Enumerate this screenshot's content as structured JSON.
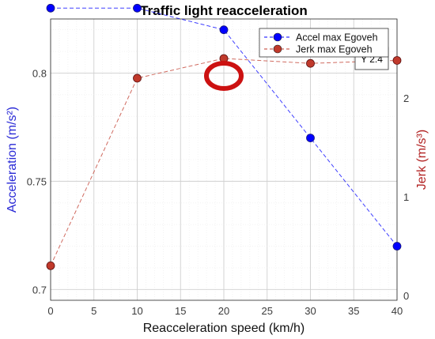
{
  "chart_data": {
    "type": "line",
    "title": "Traffic light reacceleration",
    "xlabel": "Reacceleration speed (km/h)",
    "ylabel_left": "Acceleration (m/s²)",
    "ylabel_right": "Jerk (m/s³)",
    "x": [
      0,
      10,
      20,
      30,
      40
    ],
    "xlim": [
      0,
      40
    ],
    "xticks": [
      "0",
      "5",
      "10",
      "15",
      "20",
      "25",
      "30",
      "35",
      "40"
    ],
    "ylim_left": [
      0.695,
      0.825
    ],
    "yticks_left": [
      "0.7",
      "0.75",
      "0.8"
    ],
    "ylim_right": [
      -0.05,
      2.8
    ],
    "yticks_right": [
      "0",
      "1",
      "2"
    ],
    "grid": true,
    "legend_position": "top-right",
    "datatip_text": "Y 2.4",
    "series": [
      {
        "name": "Accel max Egoveh",
        "axis": "left",
        "color": "#0000ff",
        "values": [
          0.83,
          0.83,
          0.82,
          0.77,
          0.72
        ]
      },
      {
        "name": "Jerk max Egoveh",
        "axis": "right",
        "color": "#c0392b",
        "values": [
          0.3,
          2.2,
          2.4,
          2.35,
          2.38
        ]
      }
    ],
    "colors": {
      "left_axis": "#2a2ad6",
      "right_axis": "#b22222",
      "highlight_circle": "#cc1111"
    }
  }
}
